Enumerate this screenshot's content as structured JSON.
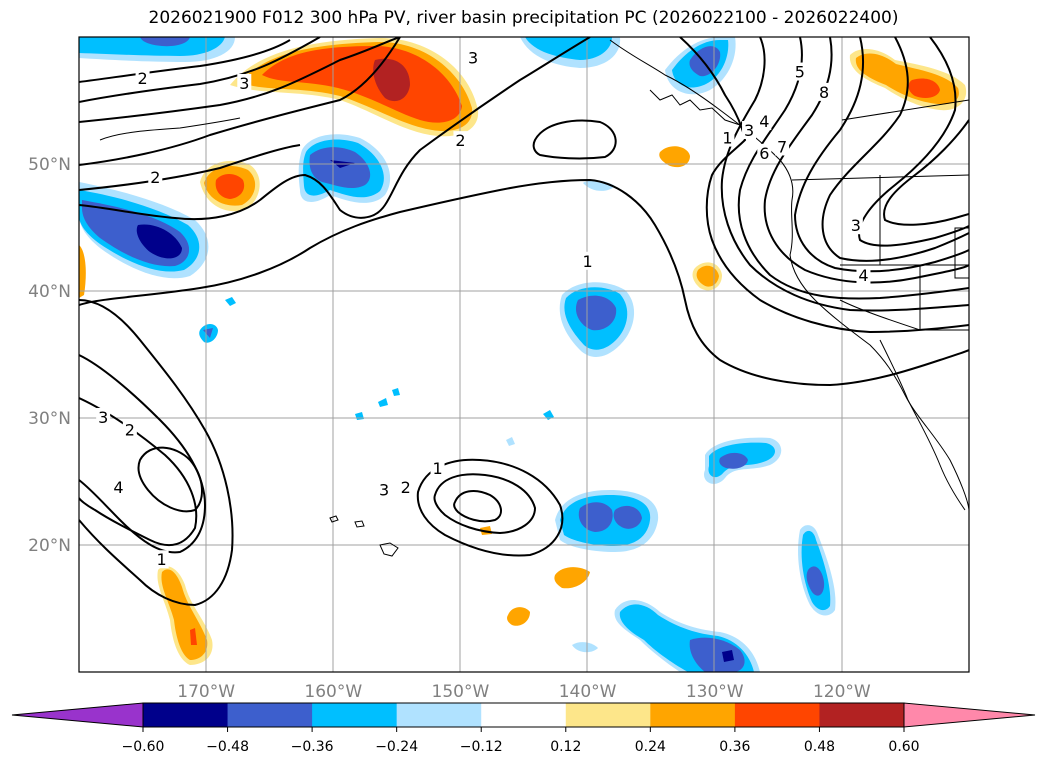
{
  "title": "2026021900 F012 300 hPa PV, river basin precipitation PC (2026022100 - 2026022400)",
  "chart_data": {
    "type": "map",
    "lon_range": [
      -180,
      -110
    ],
    "lat_range": [
      10,
      60
    ],
    "lon_ticks": [
      {
        "value": -170,
        "label": "170°W"
      },
      {
        "value": -160,
        "label": "160°W"
      },
      {
        "value": -150,
        "label": "150°W"
      },
      {
        "value": -140,
        "label": "140°W"
      },
      {
        "value": -130,
        "label": "130°W"
      },
      {
        "value": -120,
        "label": "120°W"
      }
    ],
    "lat_ticks": [
      {
        "value": 20,
        "label": "20°N"
      },
      {
        "value": 30,
        "label": "30°N"
      },
      {
        "value": 40,
        "label": "40°N"
      },
      {
        "value": 50,
        "label": "50°N"
      }
    ],
    "pv_contour_labels": [
      {
        "text": "2",
        "lon": -175,
        "lat": 56.7
      },
      {
        "text": "3",
        "lon": -167,
        "lat": 56.3
      },
      {
        "text": "3",
        "lon": -149,
        "lat": 58.3
      },
      {
        "text": "2",
        "lon": -150,
        "lat": 51.8
      },
      {
        "text": "2",
        "lon": -174,
        "lat": 48.9
      },
      {
        "text": "1",
        "lon": -140,
        "lat": 42.3
      },
      {
        "text": "1",
        "lon": -129,
        "lat": 52.0
      },
      {
        "text": "3",
        "lon": -127.3,
        "lat": 52.6
      },
      {
        "text": "4",
        "lon": -126.1,
        "lat": 53.3
      },
      {
        "text": "6",
        "lon": -126.1,
        "lat": 50.8
      },
      {
        "text": "7",
        "lon": -124.7,
        "lat": 51.3
      },
      {
        "text": "5",
        "lon": -123.3,
        "lat": 57.2
      },
      {
        "text": "8",
        "lon": -121.4,
        "lat": 55.6
      },
      {
        "text": "3",
        "lon": -118.9,
        "lat": 45.1
      },
      {
        "text": "4",
        "lon": -118.3,
        "lat": 41.2
      },
      {
        "text": "3",
        "lon": -178.1,
        "lat": 30.0
      },
      {
        "text": "2",
        "lon": -176.0,
        "lat": 29.0
      },
      {
        "text": "4",
        "lon": -176.9,
        "lat": 24.5
      },
      {
        "text": "1",
        "lon": -173.5,
        "lat": 18.8
      },
      {
        "text": "1",
        "lon": -151.8,
        "lat": 26.0
      },
      {
        "text": "3",
        "lon": -156.0,
        "lat": 24.3
      },
      {
        "text": "2",
        "lon": -154.3,
        "lat": 24.5
      }
    ],
    "colorbar": {
      "levels": [
        -0.6,
        -0.48,
        -0.36,
        -0.24,
        -0.12,
        0.12,
        0.24,
        0.36,
        0.48,
        0.6
      ],
      "tick_labels": [
        "−0.60",
        "−0.48",
        "−0.36",
        "−0.24",
        "−0.12",
        "0.12",
        "0.24",
        "0.36",
        "0.48",
        "0.60"
      ],
      "colors": [
        "#9933cc",
        "#00008b",
        "#3d5fcd",
        "#00bfff",
        "#b0e2ff",
        "#ffffff",
        "#fde68a",
        "#ffa500",
        "#ff4500",
        "#b22222",
        "#ff88aa"
      ]
    }
  }
}
